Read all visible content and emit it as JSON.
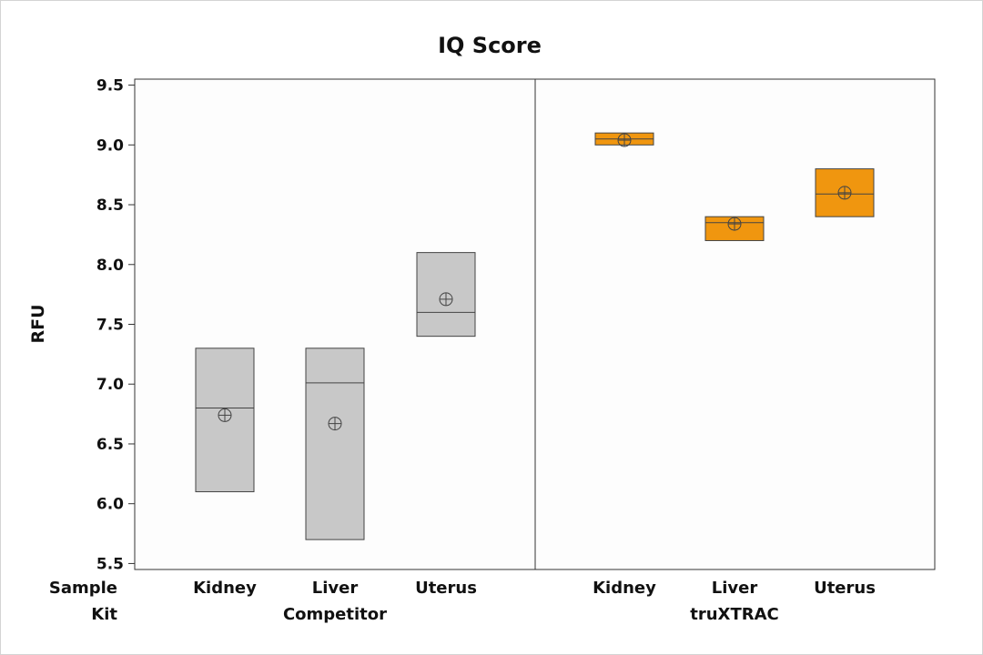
{
  "chart_data": {
    "type": "boxplot",
    "title": "IQ Score",
    "ylabel": "RFU",
    "ylim": [
      5.45,
      9.55
    ],
    "yticks": [
      "5.5",
      "6.0",
      "6.5",
      "7.0",
      "7.5",
      "8.0",
      "8.5",
      "9.0",
      "9.5"
    ],
    "row_labels": {
      "sample": "Sample",
      "kit": "Kit"
    },
    "panels": [
      {
        "kit": "Competitor",
        "fill": "#c8c8c8",
        "groups": [
          {
            "sample": "Kidney",
            "q1": 6.1,
            "median": 6.8,
            "q3": 7.3,
            "mean": 6.74
          },
          {
            "sample": "Liver",
            "q1": 5.7,
            "median": 7.01,
            "q3": 7.3,
            "mean": 6.67
          },
          {
            "sample": "Uterus",
            "q1": 7.4,
            "median": 7.6,
            "q3": 8.1,
            "mean": 7.71
          }
        ]
      },
      {
        "kit": "truXTRAC",
        "fill": "#f0960f",
        "groups": [
          {
            "sample": "Kidney",
            "q1": 9.0,
            "median": 9.05,
            "q3": 9.1,
            "mean": 9.04
          },
          {
            "sample": "Liver",
            "q1": 8.2,
            "median": 8.35,
            "q3": 8.4,
            "mean": 8.34
          },
          {
            "sample": "Uterus",
            "q1": 8.4,
            "median": 8.59,
            "q3": 8.8,
            "mean": 8.6
          }
        ]
      }
    ]
  }
}
